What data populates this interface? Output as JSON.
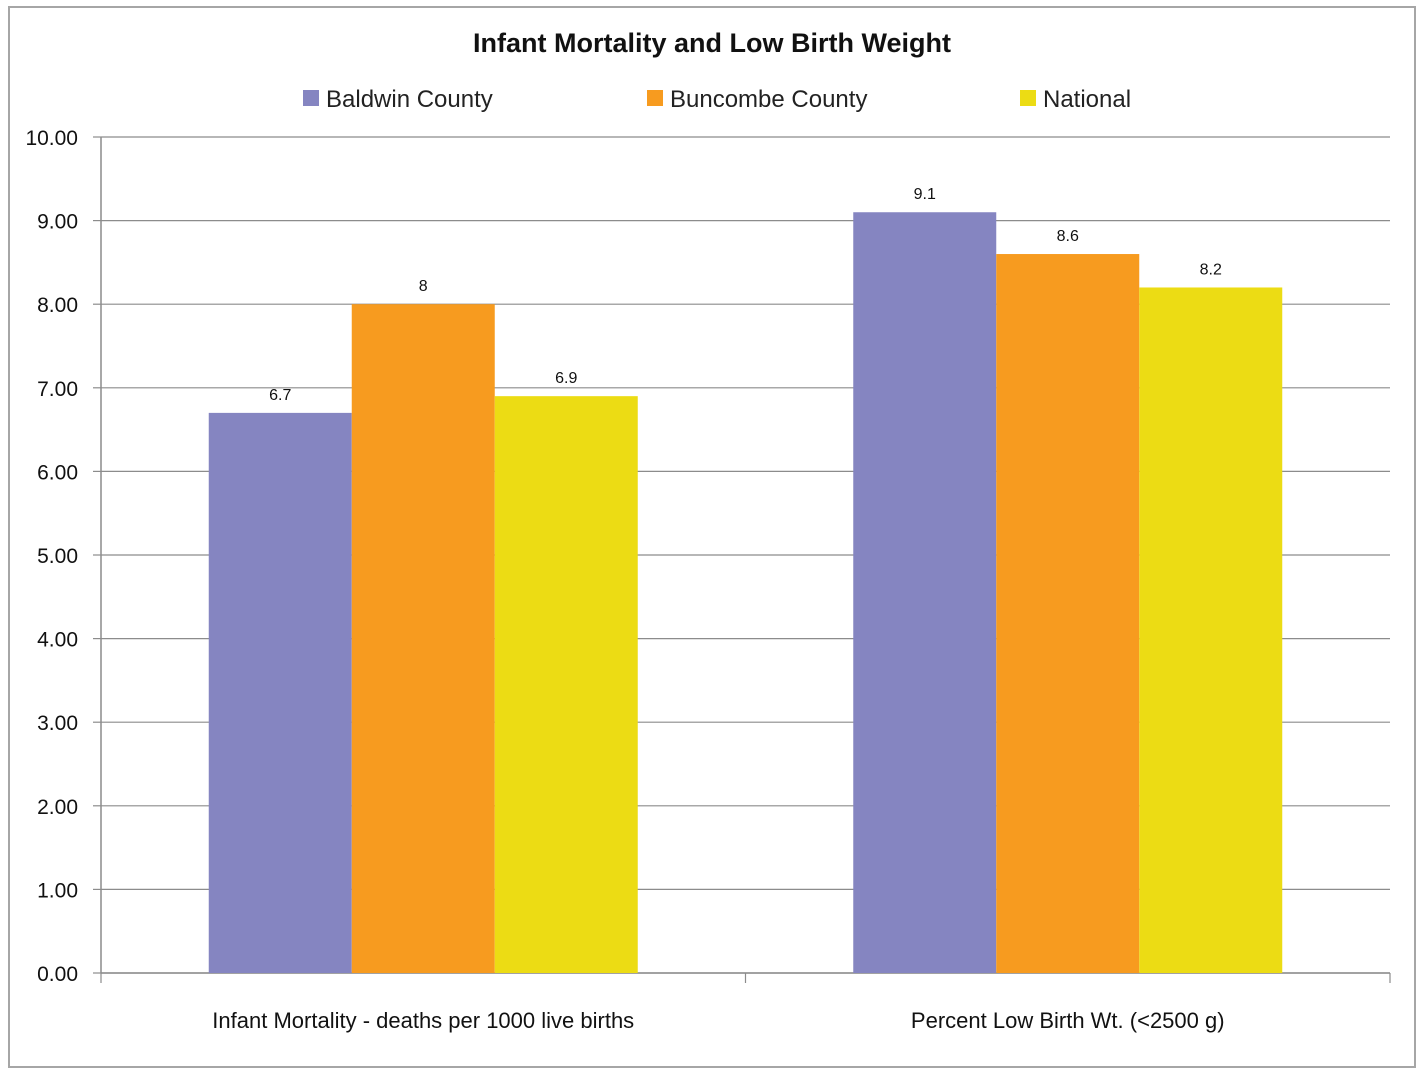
{
  "chart_data": {
    "type": "bar",
    "title": "Infant Mortality and Low Birth Weight",
    "xlabel": "",
    "ylabel": "",
    "categories": [
      "Infant Mortality - deaths per 1000 live births",
      "Percent Low Birth Wt. (<2500 g)"
    ],
    "series": [
      {
        "name": "Baldwin County",
        "values": [
          6.7,
          9.1
        ],
        "labels": [
          "6.7",
          "9.1"
        ],
        "color": "#8585c1"
      },
      {
        "name": "Buncombe County",
        "values": [
          8,
          8.6
        ],
        "labels": [
          "8",
          "8.6"
        ],
        "color": "#f79b1f"
      },
      {
        "name": "National",
        "values": [
          6.9,
          8.2
        ],
        "labels": [
          "6.9",
          "8.2"
        ],
        "color": "#ecdc14"
      }
    ],
    "ylim": [
      0,
      10
    ],
    "yticks": [
      "0.00",
      "1.00",
      "2.00",
      "3.00",
      "4.00",
      "5.00",
      "6.00",
      "7.00",
      "8.00",
      "9.00",
      "10.00"
    ],
    "grid": true,
    "legend_position": "top"
  }
}
